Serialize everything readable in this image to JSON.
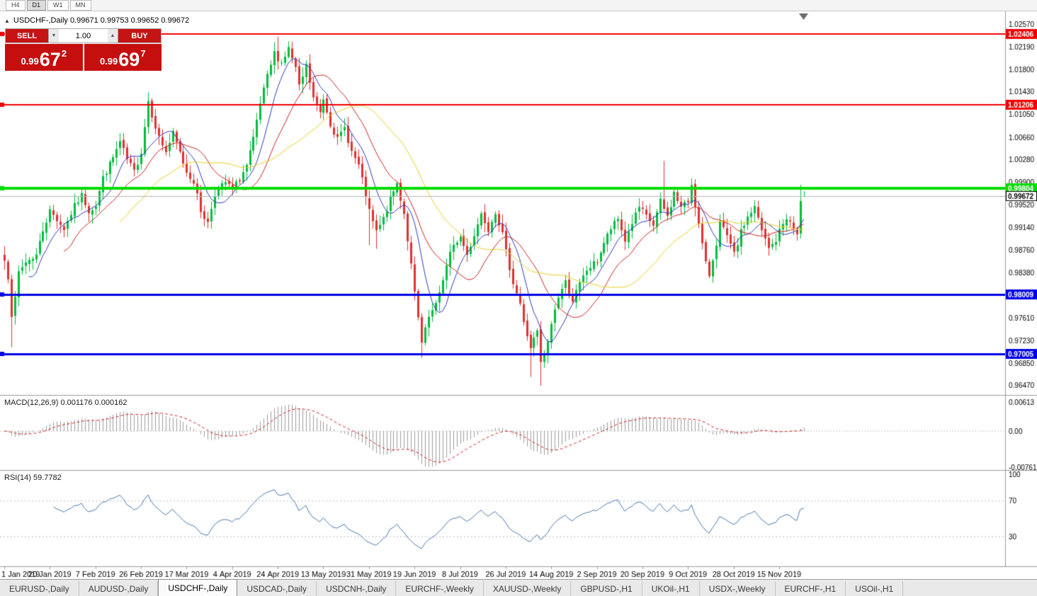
{
  "window": {
    "period_buttons": [
      "H4",
      "D1",
      "W1",
      "MN"
    ],
    "active_period": "D1",
    "title_line": "USDCHF-,Daily 0.99671 0.99753 0.99652 0.99672",
    "symbol": "USDCHF-,Daily"
  },
  "trade_panel": {
    "sell_label": "SELL",
    "buy_label": "BUY",
    "volume": "1.00",
    "sell_price": {
      "prefix": "0.99",
      "digits": "67",
      "pip": "2"
    },
    "buy_price": {
      "prefix": "0.99",
      "digits": "69",
      "pip": "7"
    }
  },
  "indicators": {
    "macd_title": "MACD(12,26,9) 0.001176 0.000162",
    "rsi_title": "RSI(14) 59.7782",
    "macd_axis": [
      "0.00613",
      "0.00",
      "-0.00761"
    ],
    "rsi_axis": [
      {
        "v": 100,
        "label": "100"
      },
      {
        "v": 70,
        "label": "70"
      },
      {
        "v": 30,
        "label": "30"
      }
    ],
    "rsi_dashed_levels": [
      70,
      30
    ]
  },
  "tabs": {
    "active_index": 2,
    "items": [
      "EURUSD-,Daily",
      "AUDUSD-,Daily",
      "USDCHF-,Daily",
      "USDCAD-,Daily",
      "USDCNH-,Daily",
      "EURCHF-,Weekly",
      "XAUUSD-,Weekly",
      "GBPUSD-,H1",
      "UKOil-,H1",
      "USDX-,Weekly",
      "EURCHF-,H1",
      "USOil-,H1"
    ]
  },
  "chart_data": {
    "type": "candlestick",
    "symbol": "USDCHF",
    "timeframe": "Daily",
    "num_candles": 229,
    "y_range": [
      0.9641,
      1.0262
    ],
    "y_ticks": [
      "1.02570",
      "1.02190",
      "1.01800",
      "1.01430",
      "1.01050",
      "1.00660",
      "1.00280",
      "0.99900",
      "0.99520",
      "0.99140",
      "0.98760",
      "0.98380",
      "0.97990",
      "0.97610",
      "0.97230",
      "0.96850",
      "0.96470"
    ],
    "x_labels": [
      {
        "label": "1 Jan 2019",
        "day": 0
      },
      {
        "label": "20 Jan 2019",
        "day": 13
      },
      {
        "label": "7 Feb 2019",
        "day": 26
      },
      {
        "label": "26 Feb 2019",
        "day": 39
      },
      {
        "label": "17 Mar 2019",
        "day": 52
      },
      {
        "label": "4 Apr 2019",
        "day": 65
      },
      {
        "label": "24 Apr 2019",
        "day": 78
      },
      {
        "label": "13 May 2019",
        "day": 91
      },
      {
        "label": "31 May 2019",
        "day": 104
      },
      {
        "label": "19 Jun 2019",
        "day": 117
      },
      {
        "label": "8 Jul 2019",
        "day": 130
      },
      {
        "label": "26 Jul 2019",
        "day": 143
      },
      {
        "label": "14 Aug 2019",
        "day": 156
      },
      {
        "label": "2 Sep 2019",
        "day": 169
      },
      {
        "label": "20 Sep 2019",
        "day": 182
      },
      {
        "label": "9 Oct 2019",
        "day": 195
      },
      {
        "label": "28 Oct 2019",
        "day": 208
      },
      {
        "label": "15 Nov 2019",
        "day": 221
      }
    ],
    "levels": [
      {
        "value": 1.02406,
        "label": "1.02406",
        "color": "#f00000",
        "width": 2
      },
      {
        "value": 1.01206,
        "label": "1.01206",
        "color": "#f00000",
        "width": 2
      },
      {
        "value": 0.99804,
        "label": "0.99804",
        "color": "#00dd00",
        "width": 4
      },
      {
        "value": 0.98009,
        "label": "0.98009",
        "color": "#0000e6",
        "width": 3
      },
      {
        "value": 0.97005,
        "label": "0.97005",
        "color": "#0000e6",
        "width": 3
      }
    ],
    "current_price": {
      "value": 0.99672,
      "label": "0.99672"
    },
    "last_candle": {
      "open": 0.99671,
      "high": 0.99753,
      "low": 0.99652,
      "close": 0.99672
    },
    "moving_averages": [
      {
        "period": 8,
        "color": "#2d3bc0"
      },
      {
        "period": 18,
        "color": "#cc2525"
      },
      {
        "period": 34,
        "color": "#e8d024"
      }
    ],
    "macd_params": {
      "fast": 12,
      "slow": 26,
      "signal": 9,
      "range": [
        -0.00761,
        0.00613
      ]
    },
    "rsi_params": {
      "period": 14
    },
    "colors": {
      "background": "#ffffff",
      "up": "#00bd3c",
      "down": "#e03030",
      "macd_hist": "#9e9e9e",
      "macd_signal": "#d22727",
      "rsi": "#4878b4",
      "axis_text": "#000000",
      "separator": "#9a9a9a",
      "current_line": "#b4b4b4",
      "shift_marker": "#6a6a6a"
    },
    "anchors": [
      [
        0,
        0.9858
      ],
      [
        1,
        0.9832
      ],
      [
        2,
        0.9768
      ],
      [
        3,
        0.9792
      ],
      [
        4,
        0.9838
      ],
      [
        6,
        0.9856
      ],
      [
        9,
        0.9868
      ],
      [
        11,
        0.991
      ],
      [
        13,
        0.9942
      ],
      [
        15,
        0.9928
      ],
      [
        17,
        0.9912
      ],
      [
        20,
        0.995
      ],
      [
        22,
        0.9968
      ],
      [
        24,
        0.9942
      ],
      [
        26,
        0.9952
      ],
      [
        28,
        0.9998
      ],
      [
        31,
        1.0032
      ],
      [
        33,
        1.0058
      ],
      [
        35,
        1.0028
      ],
      [
        37,
        1.0008
      ],
      [
        39,
        1.0042
      ],
      [
        41,
        1.0128
      ],
      [
        42,
        1.0105
      ],
      [
        44,
        1.0066
      ],
      [
        46,
        1.0042
      ],
      [
        48,
        1.0072
      ],
      [
        50,
        1.004
      ],
      [
        52,
        1.0008
      ],
      [
        54,
        0.9992
      ],
      [
        56,
        0.9942
      ],
      [
        58,
        0.9922
      ],
      [
        60,
        0.9972
      ],
      [
        63,
        0.999
      ],
      [
        65,
        0.9978
      ],
      [
        67,
        0.9996
      ],
      [
        69,
        1.0018
      ],
      [
        71,
        1.0062
      ],
      [
        73,
        1.0122
      ],
      [
        75,
        1.0168
      ],
      [
        77,
        1.0208
      ],
      [
        79,
        1.0192
      ],
      [
        81,
        1.0216
      ],
      [
        83,
        1.0182
      ],
      [
        84,
        1.015
      ],
      [
        86,
        1.0186
      ],
      [
        88,
        1.0132
      ],
      [
        90,
        1.0108
      ],
      [
        91,
        1.0132
      ],
      [
        93,
        1.009
      ],
      [
        95,
        1.0062
      ],
      [
        97,
        1.0082
      ],
      [
        99,
        1.0042
      ],
      [
        101,
        1.0018
      ],
      [
        103,
        0.9968
      ],
      [
        104,
        0.994
      ],
      [
        106,
        0.9906
      ],
      [
        108,
        0.9928
      ],
      [
        110,
        0.9962
      ],
      [
        112,
        0.9988
      ],
      [
        114,
        0.9938
      ],
      [
        116,
        0.985
      ],
      [
        117,
        0.9802
      ],
      [
        119,
        0.9718
      ],
      [
        121,
        0.9762
      ],
      [
        123,
        0.9782
      ],
      [
        125,
        0.9828
      ],
      [
        127,
        0.987
      ],
      [
        129,
        0.9892
      ],
      [
        130,
        0.9898
      ],
      [
        132,
        0.9868
      ],
      [
        134,
        0.9902
      ],
      [
        136,
        0.9938
      ],
      [
        138,
        0.9912
      ],
      [
        140,
        0.9942
      ],
      [
        142,
        0.9902
      ],
      [
        143,
        0.9872
      ],
      [
        145,
        0.9822
      ],
      [
        147,
        0.9786
      ],
      [
        148,
        0.9752
      ],
      [
        150,
        0.9712
      ],
      [
        152,
        0.9738
      ],
      [
        153,
        0.9684
      ],
      [
        155,
        0.9718
      ],
      [
        156,
        0.9752
      ],
      [
        158,
        0.9798
      ],
      [
        160,
        0.9822
      ],
      [
        162,
        0.9792
      ],
      [
        164,
        0.9818
      ],
      [
        166,
        0.9842
      ],
      [
        169,
        0.9858
      ],
      [
        171,
        0.9888
      ],
      [
        173,
        0.9912
      ],
      [
        175,
        0.9928
      ],
      [
        177,
        0.9892
      ],
      [
        179,
        0.9922
      ],
      [
        181,
        0.9948
      ],
      [
        183,
        0.9932
      ],
      [
        185,
        0.9918
      ],
      [
        187,
        0.9958
      ],
      [
        189,
        0.9932
      ],
      [
        191,
        0.9972
      ],
      [
        193,
        0.9948
      ],
      [
        195,
        0.9958
      ],
      [
        196,
        0.9988
      ],
      [
        198,
        0.9918
      ],
      [
        200,
        0.9852
      ],
      [
        201,
        0.9834
      ],
      [
        203,
        0.9888
      ],
      [
        204,
        0.9922
      ],
      [
        206,
        0.9898
      ],
      [
        208,
        0.9868
      ],
      [
        210,
        0.9906
      ],
      [
        212,
        0.9932
      ],
      [
        214,
        0.9948
      ],
      [
        216,
        0.9908
      ],
      [
        218,
        0.9878
      ],
      [
        220,
        0.9892
      ],
      [
        221,
        0.9908
      ],
      [
        223,
        0.9932
      ],
      [
        225,
        0.9912
      ],
      [
        226,
        0.9902
      ],
      [
        227,
        0.9958
      ],
      [
        228,
        0.99672
      ]
    ],
    "wick_overrides": [
      {
        "d": 2,
        "low": 0.9712
      },
      {
        "d": 41,
        "high": 1.0142
      },
      {
        "d": 78,
        "high": 1.0236
      },
      {
        "d": 81,
        "high": 1.0228
      },
      {
        "d": 86,
        "high": 1.0196
      },
      {
        "d": 104,
        "low": 0.9884
      },
      {
        "d": 106,
        "low": 0.9878
      },
      {
        "d": 112,
        "high": 0.9992
      },
      {
        "d": 119,
        "low": 0.9694
      },
      {
        "d": 150,
        "low": 0.9662
      },
      {
        "d": 153,
        "low": 0.9647
      },
      {
        "d": 188,
        "high": 1.0026
      },
      {
        "d": 196,
        "high": 0.9997
      },
      {
        "d": 227,
        "high": 0.9986
      }
    ]
  }
}
